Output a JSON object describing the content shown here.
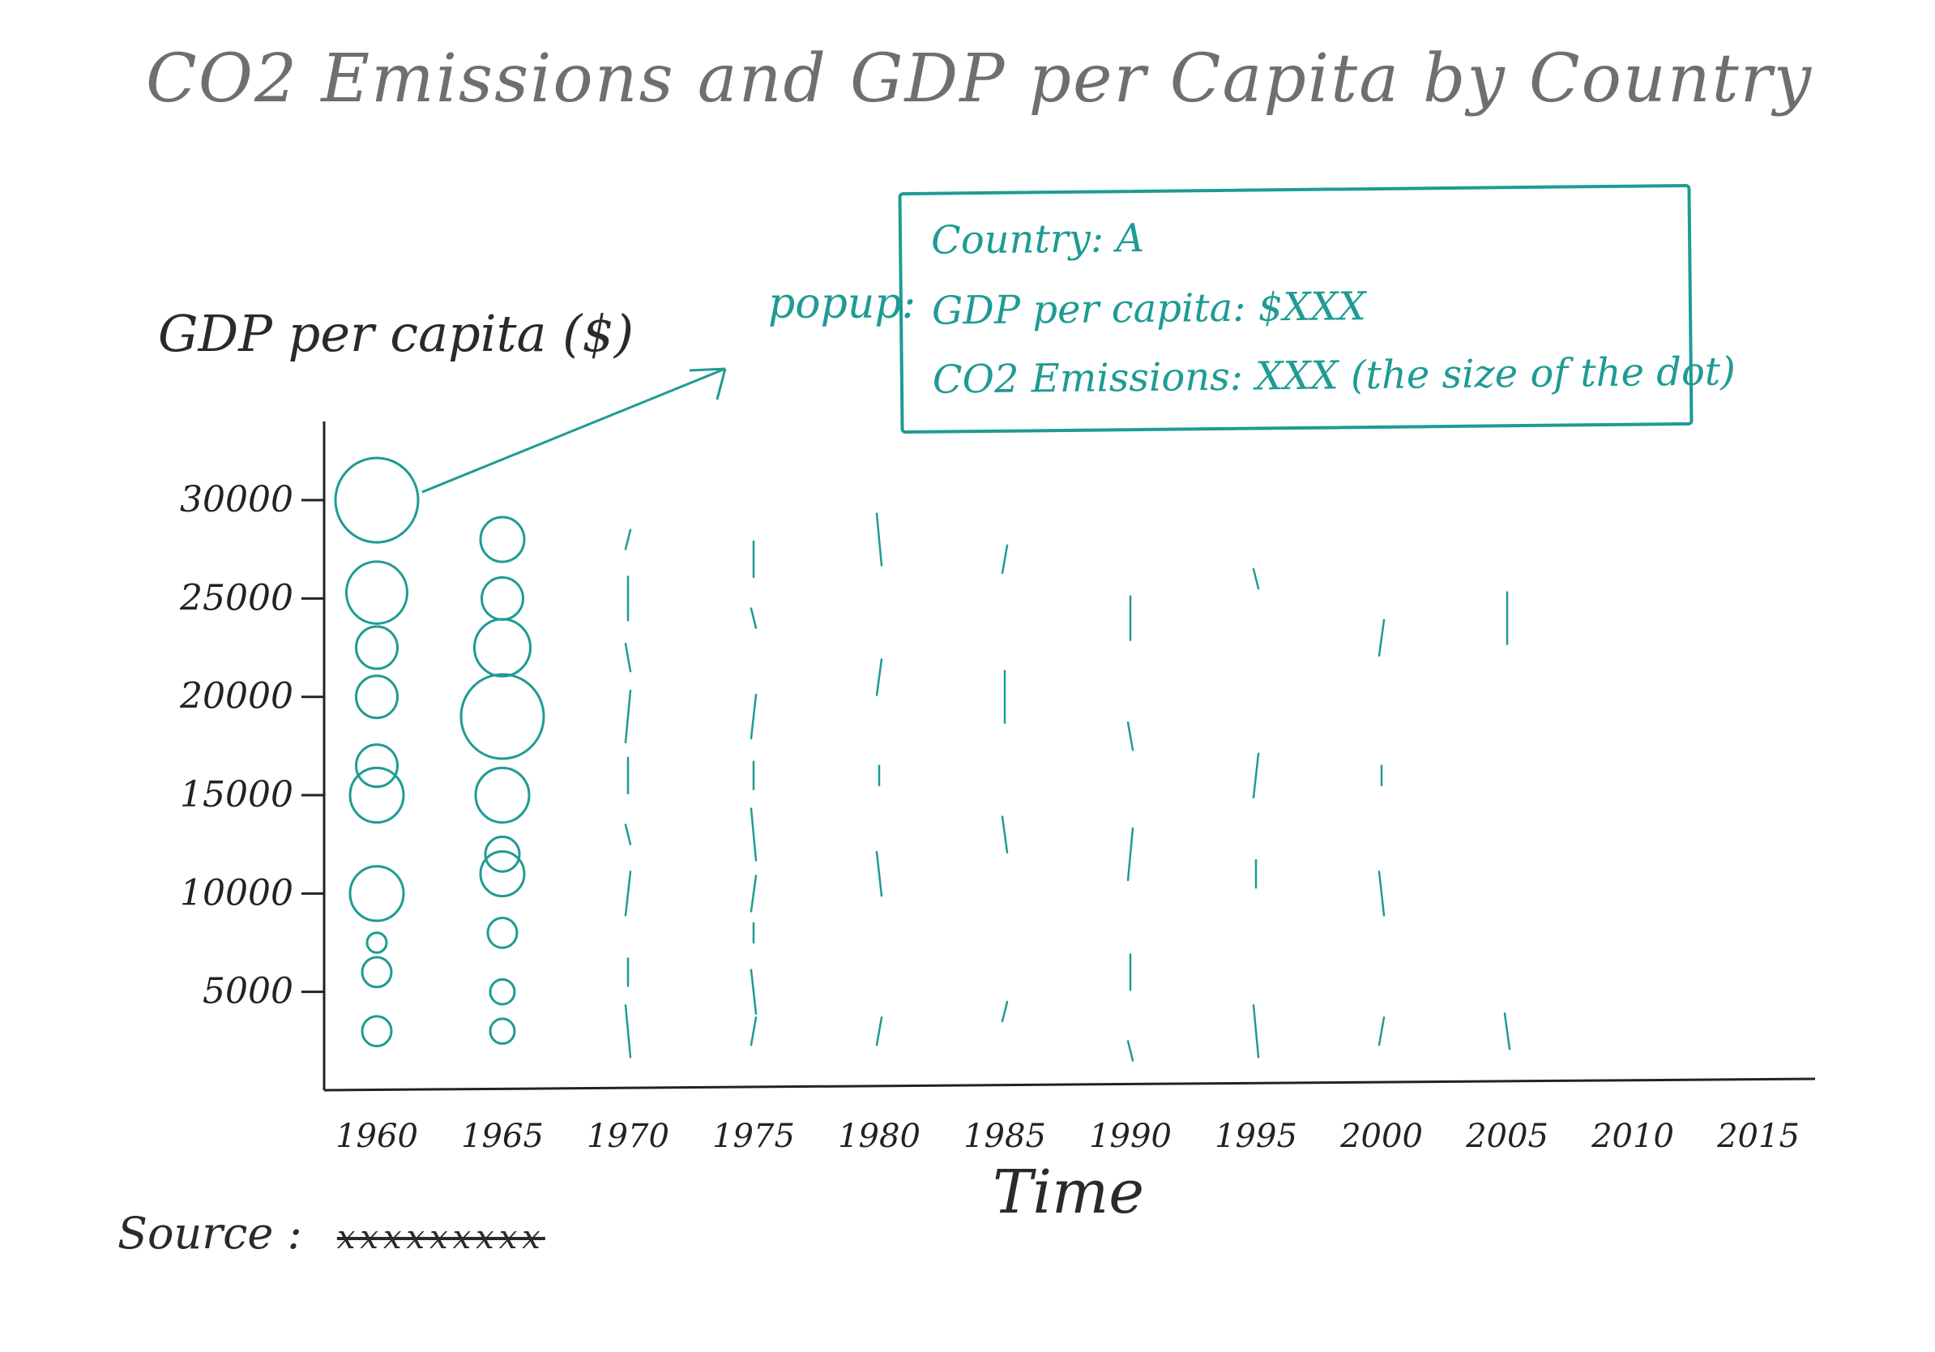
{
  "chart_data": {
    "type": "scatter",
    "title": "CO2 Emissions and GDP per Capita by Country",
    "ylabel": "GDP per capita ($)",
    "xlabel": "Time",
    "source_label": "Source",
    "source_value": "xxxxxxxxx",
    "yticks": [
      5000,
      10000,
      15000,
      20000,
      25000,
      30000
    ],
    "ytick_labels": [
      "5000",
      "10000",
      "15000",
      "20000",
      "25000",
      "30000"
    ],
    "xticks": [
      1960,
      1965,
      1970,
      1975,
      1980,
      1985,
      1990,
      1995,
      2000,
      2005,
      2010,
      2015
    ],
    "xtick_labels": [
      "1960",
      "1965",
      "1970",
      "1975",
      "1980",
      "1985",
      "1990",
      "1995",
      "2000",
      "2005",
      "2010",
      "2015"
    ],
    "xlim": [
      1958,
      2017
    ],
    "ylim": [
      0,
      34000
    ],
    "grid": false,
    "color": "#1e9b94",
    "size_encodes": "CO2 Emissions",
    "points": [
      {
        "x": 1960,
        "y": 30000,
        "size": 3.4
      },
      {
        "x": 1960,
        "y": 25300,
        "size": 2.5
      },
      {
        "x": 1960,
        "y": 22500,
        "size": 1.7
      },
      {
        "x": 1960,
        "y": 20000,
        "size": 1.7
      },
      {
        "x": 1960,
        "y": 16500,
        "size": 1.7
      },
      {
        "x": 1960,
        "y": 15000,
        "size": 2.2
      },
      {
        "x": 1960,
        "y": 10000,
        "size": 2.2
      },
      {
        "x": 1960,
        "y": 7500,
        "size": 0.8
      },
      {
        "x": 1960,
        "y": 6000,
        "size": 1.2
      },
      {
        "x": 1960,
        "y": 3000,
        "size": 1.2
      },
      {
        "x": 1965,
        "y": 28000,
        "size": 1.8
      },
      {
        "x": 1965,
        "y": 25000,
        "size": 1.7
      },
      {
        "x": 1965,
        "y": 22500,
        "size": 2.3
      },
      {
        "x": 1965,
        "y": 19000,
        "size": 3.4
      },
      {
        "x": 1965,
        "y": 15000,
        "size": 2.2
      },
      {
        "x": 1965,
        "y": 12000,
        "size": 1.4
      },
      {
        "x": 1965,
        "y": 11000,
        "size": 1.8
      },
      {
        "x": 1965,
        "y": 8000,
        "size": 1.2
      },
      {
        "x": 1965,
        "y": 5000,
        "size": 1.0
      },
      {
        "x": 1965,
        "y": 3000,
        "size": 1.0
      }
    ],
    "placeholder_years": [
      1970,
      1975,
      1980,
      1985,
      1990,
      1995,
      2000,
      2005
    ],
    "placeholder_values": [
      [
        28000,
        25000,
        22000,
        19000,
        16000,
        13000,
        10000,
        6000,
        3000
      ],
      [
        27000,
        24000,
        19000,
        16000,
        13000,
        10000,
        8000,
        5000,
        3000
      ],
      [
        28000,
        21000,
        16000,
        11000,
        3000
      ],
      [
        27000,
        20000,
        13000,
        4000
      ],
      [
        24000,
        18000,
        12000,
        6000,
        2000
      ],
      [
        26000,
        16000,
        11000,
        3000
      ],
      [
        23000,
        16000,
        10000,
        3000
      ],
      [
        24000,
        3000
      ]
    ]
  },
  "popup": {
    "label": "popup:",
    "line1": "Country: A",
    "line2": "GDP per capita: $XXX",
    "line3": "CO2 Emissions: XXX (the size of the dot)"
  }
}
